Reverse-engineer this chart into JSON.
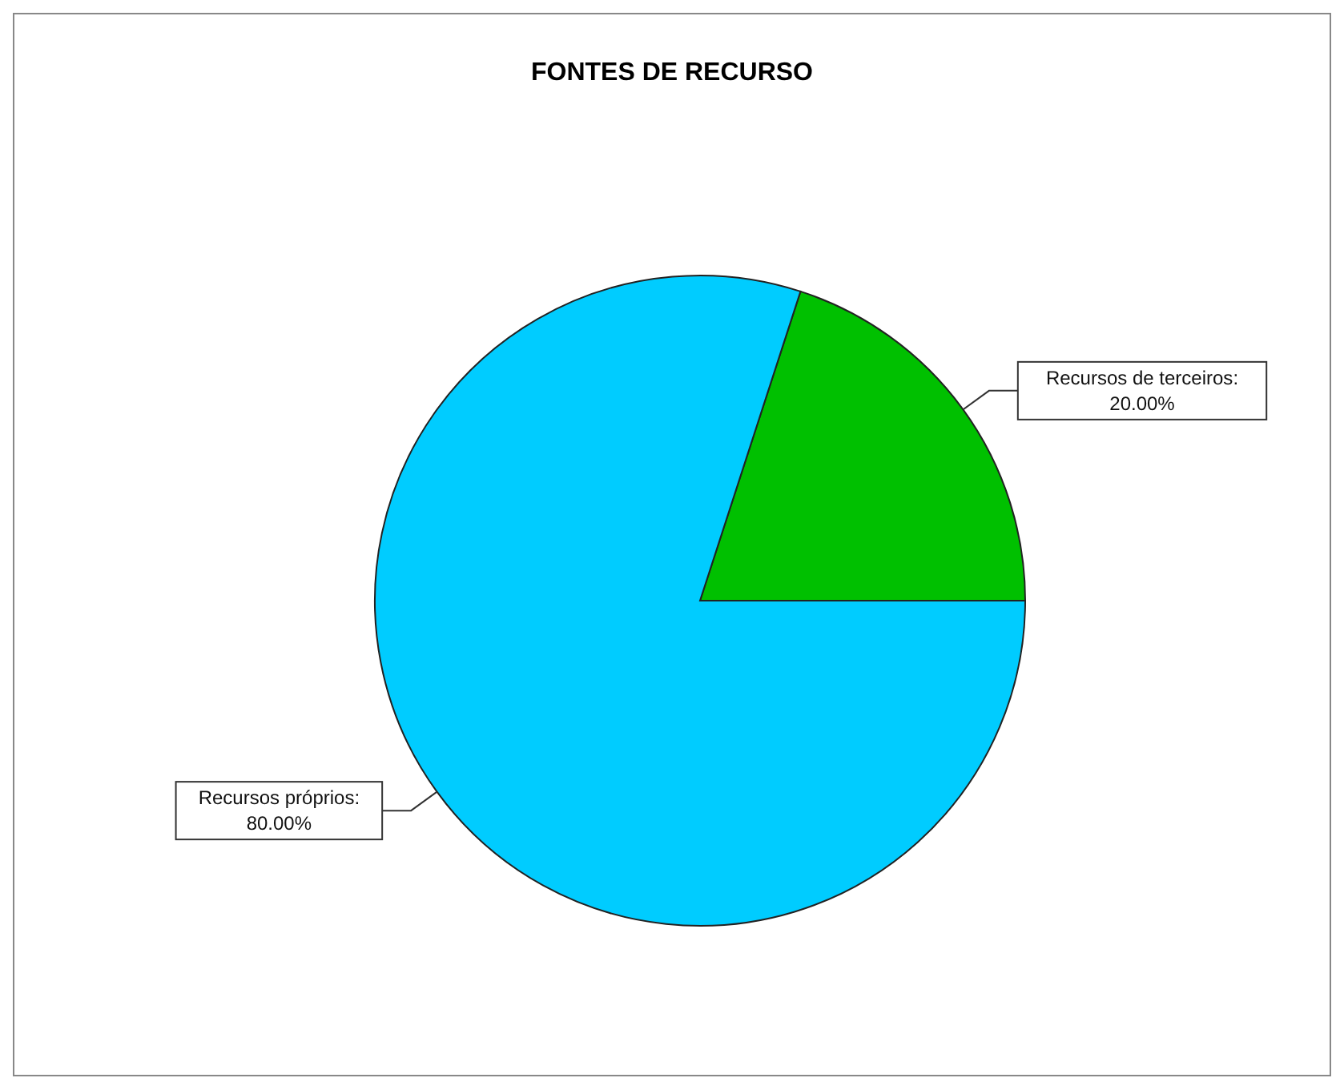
{
  "chart_data": {
    "type": "pie",
    "title": "FONTES DE RECURSO",
    "categories": [
      "Recursos de terceiros",
      "Recursos próprios"
    ],
    "values": [
      20,
      80
    ],
    "value_labels": [
      ": 20.00%",
      ": 80.00%"
    ],
    "colors": [
      "#00c000",
      "#00ccff"
    ]
  }
}
